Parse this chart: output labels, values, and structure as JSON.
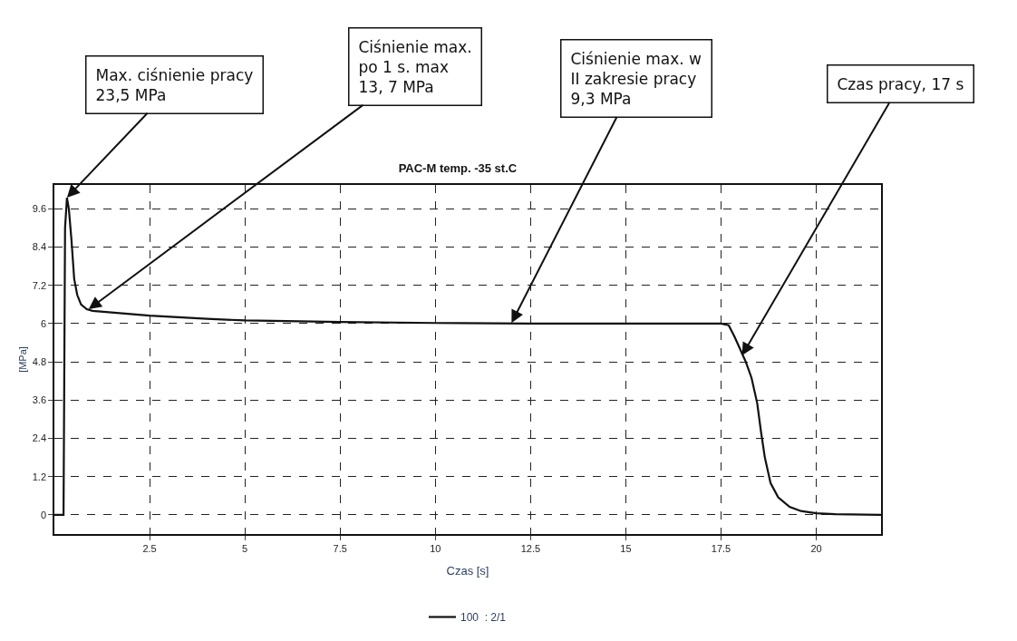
{
  "chart_data": {
    "type": "line",
    "title": "PAC-M temp. -35 st.C",
    "xlabel": "Czas [s]",
    "ylabel": "[MPa]",
    "x": [
      0,
      0.2,
      0.24,
      0.28,
      0.33,
      0.38,
      0.45,
      0.52,
      0.6,
      0.7,
      0.85,
      1.0,
      1.5,
      2.5,
      4,
      5,
      7.5,
      10,
      12.5,
      15,
      17.5,
      17.7,
      17.85,
      18.0,
      18.15,
      18.3,
      18.45,
      18.55,
      18.65,
      18.8,
      19.0,
      19.3,
      19.6,
      20.0,
      20.5,
      21.7
    ],
    "series": [
      {
        "name": "100  : 2/1",
        "color": "#111111",
        "values": [
          0,
          0,
          0,
          9.0,
          9.95,
          9.6,
          8.6,
          7.4,
          6.9,
          6.6,
          6.45,
          6.4,
          6.35,
          6.25,
          6.15,
          6.1,
          6.05,
          6.02,
          6.0,
          6.0,
          6.0,
          5.95,
          5.6,
          5.2,
          4.8,
          4.3,
          3.5,
          2.6,
          1.8,
          1.0,
          0.55,
          0.25,
          0.12,
          0.05,
          0.02,
          0
        ]
      }
    ],
    "xlim": [
      0,
      21.7
    ],
    "ylim": [
      -0.6,
      10.35
    ],
    "xticks": [
      2.5,
      5,
      7.5,
      10,
      12.5,
      15,
      17.5,
      20
    ],
    "yticks": [
      0,
      1.2,
      2.4,
      3.6,
      4.8,
      6,
      7.2,
      8.4,
      9.6
    ],
    "grid": true,
    "legend": "bottom",
    "marker": "none",
    "line_style": "solid",
    "annotations": [
      {
        "text": "Max. ciśnienie pracy\n23,5 MPa",
        "x": 0.33,
        "y": 9.95
      },
      {
        "text": "Ciśnienie max.\npo 1 s. max\n13, 7 MPa",
        "x": 0.9,
        "y": 6.45
      },
      {
        "text": "Ciśnienie max. w\nII zakresie pracy\n9,3 MPa",
        "x": 12,
        "y": 6.02
      },
      {
        "text": "Czas pracy, 17 s",
        "x": 18.05,
        "y": 5.0
      }
    ]
  }
}
